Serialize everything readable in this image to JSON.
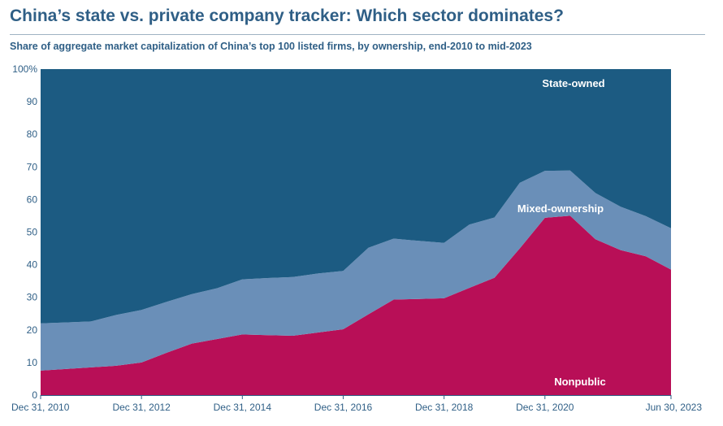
{
  "header": {
    "title": "China’s state vs. private company tracker: Which sector dominates?",
    "subtitle": "Share of aggregate market capitalization of China’s top 100 listed firms, by ownership, end-2010 to mid-2023"
  },
  "chart_data": {
    "type": "area",
    "stacked": true,
    "x": [
      "Dec 31, 2010",
      "Jun 30, 2011",
      "Dec 31, 2011",
      "Jun 30, 2012",
      "Dec 31, 2012",
      "Jun 30, 2013",
      "Dec 31, 2013",
      "Jun 30, 2014",
      "Dec 31, 2014",
      "Jun 30, 2015",
      "Dec 31, 2015",
      "Jun 30, 2016",
      "Dec 31, 2016",
      "Jun 30, 2017",
      "Dec 31, 2017",
      "Jun 30, 2018",
      "Dec 31, 2018",
      "Jun 30, 2019",
      "Dec 31, 2019",
      "Jun 30, 2020",
      "Dec 31, 2020",
      "Jun 30, 2021",
      "Dec 31, 2021",
      "Jun 30, 2022",
      "Dec 31, 2022",
      "Jun 30, 2023"
    ],
    "x_tick_labels": [
      "Dec 31, 2010",
      "Dec 31, 2012",
      "Dec 31, 2014",
      "Dec 31, 2016",
      "Dec 31, 2018",
      "Dec 31, 2020",
      "Jun 30, 2023"
    ],
    "y_tick_labels": [
      "100%",
      "90",
      "80",
      "70",
      "60",
      "50",
      "40",
      "30",
      "20",
      "10",
      "0"
    ],
    "ylim": [
      0,
      100
    ],
    "series": [
      {
        "name": "Nonpublic",
        "color": "#b80f57",
        "values": [
          7.5,
          8.0,
          8.5,
          9.0,
          10.0,
          13.0,
          15.8,
          17.2,
          18.6,
          18.4,
          18.2,
          19.2,
          20.2,
          24.8,
          29.3,
          29.5,
          29.7,
          32.9,
          36.0,
          45.0,
          54.4,
          55.0,
          47.8,
          44.5,
          42.6,
          38.5
        ]
      },
      {
        "name": "Mixed-ownership",
        "color": "#6a8fb8",
        "values": [
          14.5,
          14.3,
          14.1,
          15.6,
          16.1,
          15.6,
          15.2,
          15.6,
          16.9,
          17.5,
          18.0,
          18.1,
          17.9,
          20.4,
          18.7,
          17.8,
          17.0,
          19.4,
          18.5,
          20.1,
          14.4,
          13.9,
          14.2,
          13.3,
          12.3,
          12.7
        ]
      },
      {
        "name": "State-owned",
        "color": "#1c5b82",
        "values": [
          78.0,
          77.7,
          77.4,
          75.4,
          73.9,
          71.4,
          69.0,
          67.2,
          64.5,
          64.1,
          63.8,
          62.7,
          61.9,
          54.8,
          52.0,
          52.7,
          53.3,
          47.7,
          45.5,
          34.9,
          31.2,
          31.1,
          38.0,
          42.2,
          45.1,
          48.8
        ]
      }
    ]
  }
}
